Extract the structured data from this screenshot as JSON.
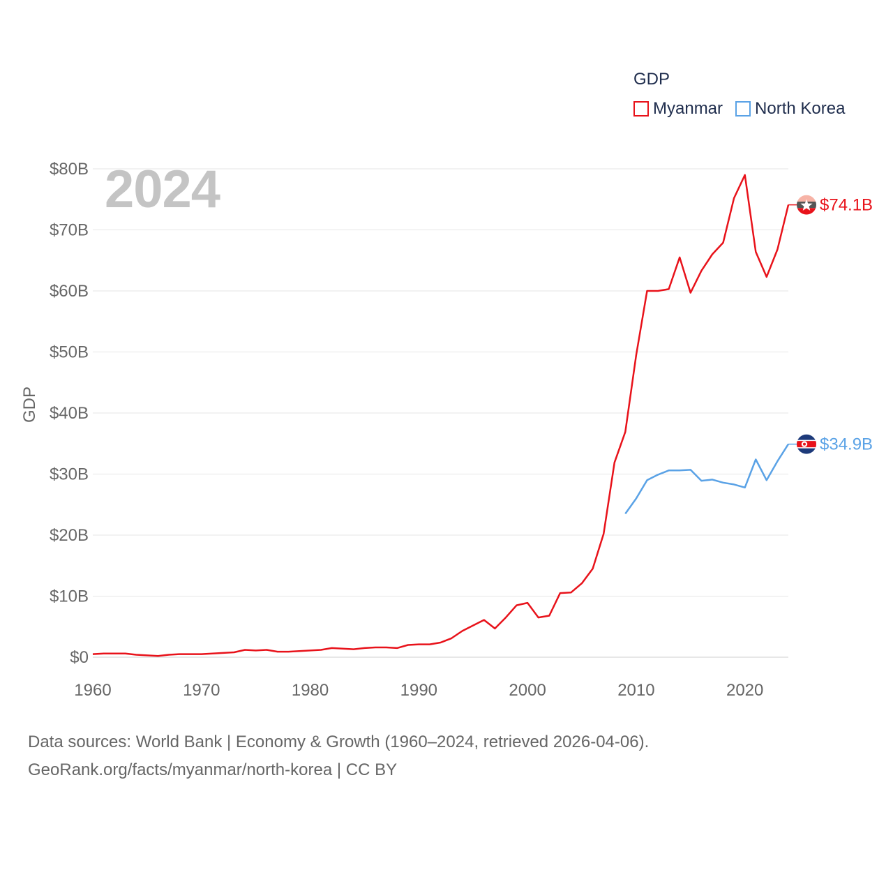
{
  "legend": {
    "title": "GDP",
    "items": [
      {
        "label": "Myanmar",
        "color": "#e8121a"
      },
      {
        "label": "North Korea",
        "color": "#5aa2e6"
      }
    ]
  },
  "year_label": "2024",
  "footer": {
    "line1": "Data sources: World Bank | Economy & Growth (1960–2024, retrieved 2026-04-06).",
    "line2": "GeoRank.org/facts/myanmar/north-korea | CC BY"
  },
  "chart_data": {
    "type": "line",
    "title": "GDP",
    "xlabel": "",
    "ylabel": "GDP",
    "xlim": [
      1960,
      2024
    ],
    "ylim": [
      0,
      80
    ],
    "x_ticks": [
      1960,
      1970,
      1980,
      1990,
      2000,
      2010,
      2020
    ],
    "x_tick_labels": [
      "1960",
      "1970",
      "1980",
      "1990",
      "2000",
      "2010",
      "2020"
    ],
    "y_ticks": [
      0,
      10,
      20,
      30,
      40,
      50,
      60,
      70,
      80
    ],
    "y_tick_labels": [
      "$0",
      "$10B",
      "$20B",
      "$30B",
      "$40B",
      "$50B",
      "$60B",
      "$70B",
      "$80B"
    ],
    "grid": true,
    "series": [
      {
        "name": "Myanmar",
        "color": "#e8121a",
        "end_label": "$74.1B",
        "x": [
          1960,
          1961,
          1962,
          1963,
          1964,
          1965,
          1966,
          1967,
          1968,
          1969,
          1970,
          1971,
          1972,
          1973,
          1974,
          1975,
          1976,
          1977,
          1978,
          1979,
          1980,
          1981,
          1982,
          1983,
          1984,
          1985,
          1986,
          1987,
          1988,
          1989,
          1990,
          1991,
          1992,
          1993,
          1994,
          1995,
          1996,
          1997,
          1998,
          1999,
          2000,
          2001,
          2002,
          2003,
          2004,
          2005,
          2006,
          2007,
          2008,
          2009,
          2010,
          2011,
          2012,
          2013,
          2014,
          2015,
          2016,
          2017,
          2018,
          2019,
          2020,
          2021,
          2022,
          2023,
          2024
        ],
        "values": [
          0.5,
          0.6,
          0.6,
          0.6,
          0.4,
          0.3,
          0.2,
          0.4,
          0.5,
          0.5,
          0.5,
          0.6,
          0.7,
          0.8,
          1.2,
          1.1,
          1.2,
          0.9,
          0.9,
          1.0,
          1.1,
          1.2,
          1.5,
          1.4,
          1.3,
          1.5,
          1.6,
          1.6,
          1.5,
          2.0,
          2.1,
          2.1,
          2.4,
          3.1,
          4.3,
          5.2,
          6.1,
          4.7,
          6.5,
          8.5,
          8.9,
          6.5,
          6.8,
          10.5,
          10.6,
          12.1,
          14.5,
          20.2,
          31.9,
          36.9,
          49.5,
          60.0,
          60.0,
          60.3,
          65.5,
          59.7,
          63.3,
          66.0,
          67.9,
          75.2,
          79.0,
          66.4,
          62.3,
          66.8,
          74.1
        ]
      },
      {
        "name": "North Korea",
        "color": "#5aa2e6",
        "end_label": "$34.9B",
        "x": [
          2009,
          2010,
          2011,
          2012,
          2013,
          2014,
          2015,
          2016,
          2017,
          2018,
          2019,
          2020,
          2021,
          2022,
          2023,
          2024
        ],
        "values": [
          23.5,
          26.0,
          29.0,
          29.9,
          30.6,
          30.6,
          30.7,
          28.9,
          29.1,
          28.6,
          28.3,
          27.8,
          32.4,
          29.0,
          32.1,
          34.9
        ]
      }
    ]
  }
}
